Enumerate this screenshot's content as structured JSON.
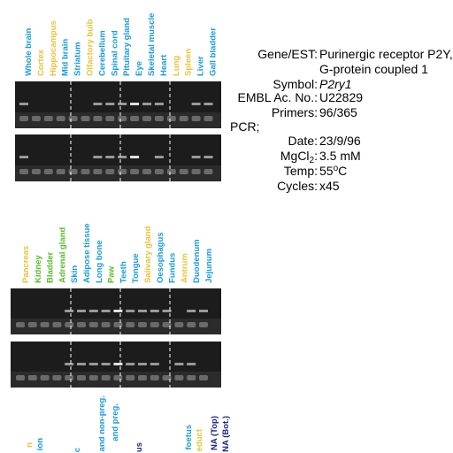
{
  "panels": [
    {
      "lanes": [
        {
          "label": "Whole brain",
          "color": "#1a9ad6"
        },
        {
          "label": "Cortex",
          "color": "#e8c23a"
        },
        {
          "label": "Hippocampus",
          "color": "#e8c23a"
        },
        {
          "label": "Mid brain",
          "color": "#1a9ad6"
        },
        {
          "label": "Striatum",
          "color": "#1a9ad6"
        },
        {
          "label": "Olfactory bulb",
          "color": "#e8c23a"
        },
        {
          "label": "Cerebellum",
          "color": "#1a9ad6"
        },
        {
          "label": "Spinal cord",
          "color": "#1a9ad6"
        },
        {
          "label": "Pituitary gland",
          "color": "#1a9ad6"
        },
        {
          "label": "Eye",
          "color": "#1a9ad6"
        },
        {
          "label": "Skeletal muscle",
          "color": "#1a9ad6"
        },
        {
          "label": "Heart",
          "color": "#1a9ad6"
        },
        {
          "label": "Lung",
          "color": "#e8c23a"
        },
        {
          "label": "Spleen",
          "color": "#e8c23a"
        },
        {
          "label": "Liver",
          "color": "#1a9ad6"
        },
        {
          "label": "Gall bladder",
          "color": "#1a9ad6"
        }
      ]
    },
    {
      "lanes": [
        {
          "label": "Pancreas",
          "color": "#e8c23a"
        },
        {
          "label": "Kidney",
          "color": "#5cb82e"
        },
        {
          "label": "Bladder",
          "color": "#5cb82e"
        },
        {
          "label": "Adrenal gland",
          "color": "#5cb82e"
        },
        {
          "label": "Skin",
          "color": "#1a9ad6"
        },
        {
          "label": "Adipose tissue",
          "color": "#1a9ad6"
        },
        {
          "label": "Long bone",
          "color": "#1a9ad6"
        },
        {
          "label": "Paw",
          "color": "#5cb82e"
        },
        {
          "label": "Teeth",
          "color": "#1a9ad6"
        },
        {
          "label": "Tongue",
          "color": "#1a9ad6"
        },
        {
          "label": "Salivary gland",
          "color": "#e8c23a"
        },
        {
          "label": "Oesophagus",
          "color": "#1a9ad6"
        },
        {
          "label": "Fundus",
          "color": "#1a9ad6"
        },
        {
          "label": "Antrum",
          "color": "#e8c23a"
        },
        {
          "label": "Duodenum",
          "color": "#1a9ad6"
        },
        {
          "label": "Jejunum",
          "color": "#1a9ad6"
        }
      ]
    },
    {
      "lanes": [
        {
          "label": "n",
          "color": "#e8c23a"
        },
        {
          "label": "ion",
          "color": "#1a9ad6"
        },
        {
          "label": "c",
          "color": "#1a9ad6"
        },
        {
          "label": "and non-preg.",
          "color": "#1a9ad6"
        },
        {
          "label": "and preg.",
          "color": "#1a9ad6"
        },
        {
          "label": "us",
          "color": "#1a237e"
        },
        {
          "label": "foetus",
          "color": "#1a9ad6"
        },
        {
          "label": "educt",
          "color": "#e8c23a"
        },
        {
          "label": "NA (Top)",
          "color": "#1a237e"
        },
        {
          "label": "NA (Bot.)",
          "color": "#1a237e"
        }
      ]
    }
  ],
  "info": {
    "gene_label": "Gene/EST:",
    "gene": "Purinergic receptor P2Y,",
    "gene2": "G-protein coupled 1",
    "symbol_label": "Symbol:",
    "symbol": "P2ry1",
    "embl_label": "EMBL Ac. No.:",
    "embl": "U22829",
    "primers_label": "Primers:",
    "primers": "96/365",
    "pcr": "PCR;",
    "date_label": "Date:",
    "date": "23/9/96",
    "mg_label": "MgCl",
    "mg_sub": "2",
    "mg_colon": ":",
    "mg": "3.5 mM",
    "temp_label": "Temp:",
    "temp": "55",
    "temp_sup": "o",
    "temp_unit": "C",
    "cycles_label": "Cycles:",
    "cycles": "x45"
  }
}
